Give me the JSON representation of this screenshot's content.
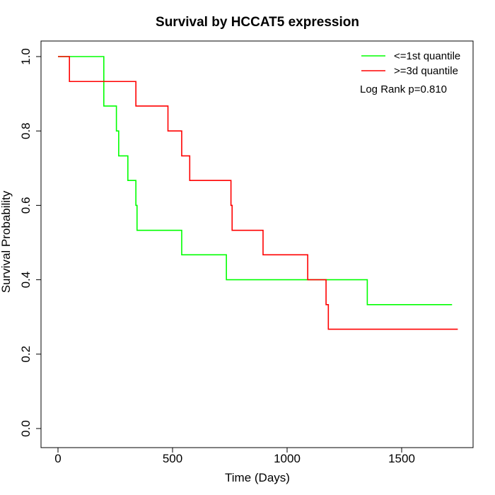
{
  "chart_data": {
    "type": "line",
    "title": "Survival by HCCAT5 expression",
    "xlabel": "Time (Days)",
    "ylabel": "Survival Probability",
    "xlim": [
      0,
      1750
    ],
    "ylim": [
      0,
      1.0
    ],
    "x_ticks": [
      0,
      500,
      1000,
      1500
    ],
    "x_tick_labels": [
      "0",
      "500",
      "1000",
      "1500"
    ],
    "y_ticks": [
      0.0,
      0.2,
      0.4,
      0.6,
      0.8,
      1.0
    ],
    "y_tick_labels": [
      "0.0",
      "0.2",
      "0.4",
      "0.6",
      "0.8",
      "1.0"
    ],
    "grid": false,
    "legend_position": "top-right",
    "annotation": "Log Rank p=0.810",
    "series": [
      {
        "name": "<=1st quantile",
        "color": "#00ff00",
        "step": true,
        "x": [
          0,
          170,
          200,
          255,
          265,
          305,
          340,
          345,
          540,
          735,
          1350,
          1720
        ],
        "y": [
          1.0,
          1.0,
          0.867,
          0.8,
          0.733,
          0.667,
          0.6,
          0.533,
          0.467,
          0.4,
          0.333,
          0.333
        ]
      },
      {
        "name": ">=3d quantile",
        "color": "#ff0000",
        "step": true,
        "x": [
          0,
          50,
          340,
          480,
          540,
          575,
          755,
          760,
          895,
          1090,
          1170,
          1180,
          1745
        ],
        "y": [
          1.0,
          0.933,
          0.867,
          0.8,
          0.733,
          0.667,
          0.6,
          0.533,
          0.467,
          0.4,
          0.333,
          0.267,
          0.267
        ]
      }
    ]
  }
}
